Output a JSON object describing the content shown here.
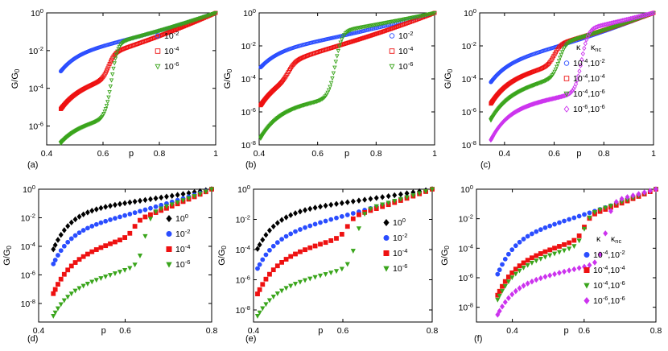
{
  "colors": {
    "blue": "#2a4dff",
    "red": "#ee1111",
    "green": "#3aa51c",
    "magenta": "#cc33ee",
    "black": "#000000"
  },
  "chart_data": [
    {
      "type": "scatter",
      "panel_label": "(a)",
      "marker_style": "open",
      "ylabel": "G/G₀",
      "xlabel": "p",
      "xlim": [
        0.4,
        1.0
      ],
      "ylim_exp": [
        -7,
        0
      ],
      "y_scale": "log",
      "xticks": [
        "0.4",
        "0.6",
        "0.8",
        "1"
      ],
      "yticks": [
        "10⁰",
        "10⁻²",
        "10⁻⁴",
        "10⁻⁶"
      ],
      "legend_title": [],
      "series": [
        {
          "name": "10⁻²",
          "color": "#2a4dff",
          "marker": "circle",
          "pc": 0.45,
          "startExp": -3.1,
          "plateauExp": -2.0,
          "jumpX": 0,
          "jumpAmp": 0,
          "endX": 1.0
        },
        {
          "name": "10⁻⁴",
          "color": "#ee1111",
          "marker": "square",
          "pc": 0.45,
          "startExp": -5.1,
          "plateauExp": -3.9,
          "jumpX": 0.62,
          "jumpAmp": 1.3,
          "endX": 1.0
        },
        {
          "name": "10⁻⁶",
          "color": "#3aa51c",
          "marker": "triangle-down",
          "pc": 0.45,
          "startExp": -6.9,
          "plateauExp": -5.9,
          "jumpX": 0.63,
          "jumpAmp": 3.9,
          "endX": 1.0
        }
      ]
    },
    {
      "type": "scatter",
      "panel_label": "(b)",
      "marker_style": "open",
      "ylabel": "G/G₀",
      "xlabel": "p",
      "xlim": [
        0.4,
        1.0
      ],
      "ylim_exp": [
        -8,
        0
      ],
      "y_scale": "log",
      "xticks": [
        "0.4",
        "0.6",
        "0.8",
        "1"
      ],
      "yticks": [
        "10⁰",
        "10⁻²",
        "10⁻⁴",
        "10⁻⁶",
        "10⁻⁸"
      ],
      "legend_title": [],
      "series": [
        {
          "name": "10⁻²",
          "color": "#2a4dff",
          "marker": "circle",
          "pc": 0.405,
          "startExp": -3.3,
          "plateauExp": -2.1,
          "jumpX": 0,
          "jumpAmp": 0,
          "endX": 1.0
        },
        {
          "name": "10⁻⁴",
          "color": "#ee1111",
          "marker": "square",
          "pc": 0.405,
          "startExp": -5.6,
          "plateauExp": -3.9,
          "jumpX": 0.5,
          "jumpAmp": 1.0,
          "endX": 1.0
        },
        {
          "name": "10⁻⁶",
          "color": "#3aa51c",
          "marker": "triangle-down",
          "pc": 0.405,
          "startExp": -7.6,
          "plateauExp": -5.6,
          "jumpX": 0.66,
          "jumpAmp": 4.0,
          "endX": 1.0
        }
      ]
    },
    {
      "type": "scatter",
      "panel_label": "(c)",
      "marker_style": "open",
      "ylabel": "G/G₀",
      "xlabel": "p",
      "xlim": [
        0.3,
        1.0
      ],
      "ylim_exp": [
        -8,
        0
      ],
      "y_scale": "log",
      "xticks": [
        "0.4",
        "0.6",
        "0.8",
        "1"
      ],
      "yticks": [
        "10⁰",
        "10⁻²",
        "10⁻⁴",
        "10⁻⁶",
        "10⁻⁸"
      ],
      "legend_title": [
        "κ",
        "κₙᴄ"
      ],
      "series": [
        {
          "name": "10⁻⁴,10⁻²",
          "color": "#2a4dff",
          "marker": "circle",
          "pc": 0.345,
          "startExp": -4.2,
          "plateauExp": -2.8,
          "jumpX": 0,
          "jumpAmp": 0,
          "endX": 1.0
        },
        {
          "name": "10⁻⁴,10⁻⁴",
          "color": "#ee1111",
          "marker": "square",
          "pc": 0.345,
          "startExp": -5.5,
          "plateauExp": -3.8,
          "jumpX": 0.6,
          "jumpAmp": 1.2,
          "endX": 1.0
        },
        {
          "name": "10⁻⁴,10⁻⁶",
          "color": "#3aa51c",
          "marker": "triangle-down",
          "pc": 0.345,
          "startExp": -6.5,
          "plateauExp": -4.6,
          "jumpX": 0.62,
          "jumpAmp": 2.0,
          "endX": 1.0
        },
        {
          "name": "10⁻⁶,10⁻⁶",
          "color": "#cc33ee",
          "marker": "diamond",
          "pc": 0.345,
          "startExp": -7.7,
          "plateauExp": -5.6,
          "jumpX": 0.71,
          "jumpAmp": 3.8,
          "endX": 1.0
        }
      ]
    },
    {
      "type": "scatter",
      "panel_label": "(d)",
      "marker_style": "filled",
      "ylabel": "G/G₀",
      "xlabel": "p",
      "xlim": [
        0.4,
        0.8
      ],
      "ylim_exp": [
        -9.3,
        0
      ],
      "y_scale": "log",
      "xticks": [
        "0.4",
        "0.6",
        "0.8"
      ],
      "yticks": [
        "10⁰",
        "10⁻²",
        "10⁻⁴",
        "10⁻⁶",
        "10⁻⁸"
      ],
      "legend_title": [],
      "series": [
        {
          "name": "10⁰",
          "color": "#000000",
          "marker": "diamond",
          "pc": 0.43,
          "startExp": -4.5,
          "plateauExp": -1.4,
          "jumpX": 0,
          "jumpAmp": 0,
          "endX": 0.8
        },
        {
          "name": "10⁻²",
          "color": "#2a4dff",
          "marker": "circle",
          "pc": 0.43,
          "startExp": -5.5,
          "plateauExp": -2.7,
          "jumpX": 0,
          "jumpAmp": 0,
          "endX": 0.8
        },
        {
          "name": "10⁻⁴",
          "color": "#ee1111",
          "marker": "square",
          "pc": 0.43,
          "startExp": -7.6,
          "plateauExp": -4.6,
          "jumpX": 0.62,
          "jumpAmp": 1.0,
          "endX": 0.8
        },
        {
          "name": "10⁻⁶",
          "color": "#3aa51c",
          "marker": "triangle-down",
          "pc": 0.43,
          "startExp": -9.1,
          "plateauExp": -6.7,
          "jumpX": 0.645,
          "jumpAmp": 3.5,
          "endX": 0.8
        }
      ]
    },
    {
      "type": "scatter",
      "panel_label": "(e)",
      "marker_style": "filled",
      "ylabel": "G/G₀",
      "xlabel": "p",
      "xlim": [
        0.4,
        0.8
      ],
      "ylim_exp": [
        -8.8,
        0
      ],
      "y_scale": "log",
      "xticks": [
        "0.4",
        "0.6",
        "0.8"
      ],
      "yticks": [
        "10⁰",
        "10⁻²",
        "10⁻⁴",
        "10⁻⁶",
        "10⁻⁸"
      ],
      "legend_title": [],
      "series": [
        {
          "name": "10⁰",
          "color": "#000000",
          "marker": "diamond",
          "pc": 0.405,
          "startExp": -4.2,
          "plateauExp": -1.4,
          "jumpX": 0,
          "jumpAmp": 0,
          "endX": 0.8
        },
        {
          "name": "10⁻²",
          "color": "#2a4dff",
          "marker": "circle",
          "pc": 0.405,
          "startExp": -5.5,
          "plateauExp": -2.8,
          "jumpX": 0,
          "jumpAmp": 0,
          "endX": 0.8
        },
        {
          "name": "10⁻⁴",
          "color": "#ee1111",
          "marker": "square",
          "pc": 0.405,
          "startExp": -7.2,
          "plateauExp": -4.3,
          "jumpX": 0.61,
          "jumpAmp": 1.2,
          "endX": 0.8
        },
        {
          "name": "10⁻⁶",
          "color": "#3aa51c",
          "marker": "triangle-down",
          "pc": 0.405,
          "startExp": -8.6,
          "plateauExp": -6.3,
          "jumpX": 0.63,
          "jumpAmp": 3.6,
          "endX": 0.8
        }
      ]
    },
    {
      "type": "scatter",
      "panel_label": "(f)",
      "marker_style": "filled",
      "ylabel": "G/G₀",
      "xlabel": "p",
      "xlim": [
        0.3,
        0.8
      ],
      "ylim_exp": [
        -9,
        0
      ],
      "y_scale": "log",
      "xticks": [
        "0.4",
        "0.6",
        "0.8"
      ],
      "yticks": [
        "10⁰",
        "10⁻²",
        "10⁻⁴",
        "10⁻⁶",
        "10⁻⁸"
      ],
      "legend_title": [
        "κ",
        "κₙᴄ"
      ],
      "series": [
        {
          "name": "10⁻⁴,10⁻²",
          "color": "#2a4dff",
          "marker": "circle",
          "pc": 0.355,
          "startExp": -6.0,
          "plateauExp": -3.0,
          "jumpX": 0,
          "jumpAmp": 0,
          "endX": 0.8
        },
        {
          "name": "10⁻⁴,10⁻⁴",
          "color": "#ee1111",
          "marker": "square",
          "pc": 0.355,
          "startExp": -7.4,
          "plateauExp": -4.7,
          "jumpX": 0.6,
          "jumpAmp": 1.4,
          "endX": 0.8
        },
        {
          "name": "10⁻⁴,10⁻⁶",
          "color": "#3aa51c",
          "marker": "triangle-down",
          "pc": 0.355,
          "startExp": -7.7,
          "plateauExp": -5.0,
          "jumpX": 0.6,
          "jumpAmp": 2.0,
          "endX": 0.8
        },
        {
          "name": "10⁻⁶,10⁻⁶",
          "color": "#cc33ee",
          "marker": "diamond",
          "pc": 0.355,
          "startExp": -8.7,
          "plateauExp": -6.2,
          "jumpX": 0.66,
          "jumpAmp": 4.0,
          "endX": 0.8
        }
      ]
    }
  ]
}
